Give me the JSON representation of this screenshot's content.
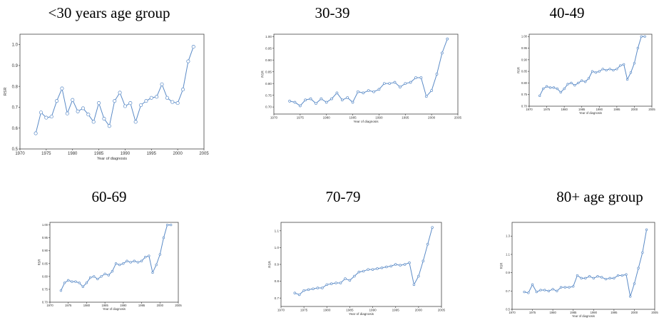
{
  "chart_data": [
    {
      "type": "line",
      "title": "<30 years age group",
      "xlabel": "Year of diagnosis",
      "ylabel": "RSR",
      "xlim": [
        1970,
        2005
      ],
      "ylim": [
        0.5,
        1.05
      ],
      "xticks": [
        "1970",
        "1975",
        "1980",
        "1985",
        "1990",
        "1995",
        "2000",
        "2005"
      ],
      "yticks": [
        "0.5",
        "0.6",
        "0.7",
        "0.8",
        "0.9",
        "1.0"
      ],
      "series": [
        {
          "x": [
            1973,
            1974,
            1975,
            1976,
            1977,
            1978,
            1979,
            1980,
            1981,
            1982,
            1983,
            1984,
            1985,
            1986,
            1987,
            1988,
            1989,
            1990,
            1991,
            1992,
            1993,
            1994,
            1995,
            1996,
            1997,
            1998,
            1999,
            2000,
            2001,
            2002,
            2003
          ],
          "values": [
            0.575,
            0.675,
            0.65,
            0.655,
            0.73,
            0.79,
            0.67,
            0.735,
            0.68,
            0.695,
            0.665,
            0.63,
            0.72,
            0.645,
            0.61,
            0.73,
            0.77,
            0.705,
            0.72,
            0.63,
            0.71,
            0.73,
            0.745,
            0.75,
            0.81,
            0.745,
            0.725,
            0.72,
            0.785,
            0.92,
            0.99
          ]
        }
      ]
    },
    {
      "type": "line",
      "title": "30-39",
      "xlabel": "Year of diagnosis",
      "ylabel": "RSR",
      "xlim": [
        1970,
        2005
      ],
      "ylim": [
        0.67,
        1.01
      ],
      "xticks": [
        "1970",
        "1975",
        "1980",
        "1985",
        "1990",
        "1995",
        "2000",
        "2005"
      ],
      "yticks": [
        "0.70",
        "0.75",
        "0.80",
        "0.85",
        "0.90",
        "0.95",
        "1.00"
      ],
      "series": [
        {
          "x": [
            1973,
            1974,
            1975,
            1976,
            1977,
            1978,
            1979,
            1980,
            1981,
            1982,
            1983,
            1984,
            1985,
            1986,
            1987,
            1988,
            1989,
            1990,
            1991,
            1992,
            1993,
            1994,
            1995,
            1996,
            1997,
            1998,
            1999,
            2000,
            2001,
            2002,
            2003
          ],
          "values": [
            0.725,
            0.72,
            0.705,
            0.73,
            0.735,
            0.715,
            0.735,
            0.72,
            0.735,
            0.76,
            0.73,
            0.74,
            0.72,
            0.765,
            0.76,
            0.77,
            0.765,
            0.775,
            0.8,
            0.8,
            0.805,
            0.785,
            0.8,
            0.805,
            0.825,
            0.825,
            0.745,
            0.77,
            0.84,
            0.93,
            0.99
          ]
        }
      ]
    },
    {
      "type": "line",
      "title": "40-49",
      "xlabel": "Year of diagnosis",
      "ylabel": "RSR",
      "xlim": [
        1970,
        2005
      ],
      "ylim": [
        0.7,
        1.01
      ],
      "xticks": [
        "1970",
        "1975",
        "1980",
        "1985",
        "1990",
        "1995",
        "2000",
        "2005"
      ],
      "yticks": [
        "0.70",
        "0.75",
        "0.80",
        "0.85",
        "0.90",
        "0.95",
        "1.00"
      ],
      "series": [
        {
          "x": [
            1973,
            1974,
            1975,
            1976,
            1977,
            1978,
            1979,
            1980,
            1981,
            1982,
            1983,
            1984,
            1985,
            1986,
            1987,
            1988,
            1989,
            1990,
            1991,
            1992,
            1993,
            1994,
            1995,
            1996,
            1997,
            1998,
            1999,
            2000,
            2001,
            2002,
            2003
          ],
          "values": [
            0.745,
            0.775,
            0.785,
            0.78,
            0.78,
            0.775,
            0.76,
            0.775,
            0.795,
            0.8,
            0.79,
            0.8,
            0.81,
            0.805,
            0.82,
            0.85,
            0.845,
            0.85,
            0.86,
            0.855,
            0.86,
            0.855,
            0.86,
            0.875,
            0.88,
            0.815,
            0.845,
            0.885,
            0.95,
            1.0,
            1.0
          ]
        }
      ]
    },
    {
      "type": "line",
      "title": "60-69",
      "xlabel": "Year of diagnosis",
      "ylabel": "RSR",
      "xlim": [
        1970,
        2005
      ],
      "ylim": [
        0.7,
        1.01
      ],
      "xticks": [
        "1970",
        "1975",
        "1980",
        "1985",
        "1990",
        "1995",
        "2000",
        "2005"
      ],
      "yticks": [
        "0.70",
        "0.75",
        "0.80",
        "0.85",
        "0.90",
        "0.95",
        "1.00"
      ],
      "series": [
        {
          "x": [
            1973,
            1974,
            1975,
            1976,
            1977,
            1978,
            1979,
            1980,
            1981,
            1982,
            1983,
            1984,
            1985,
            1986,
            1987,
            1988,
            1989,
            1990,
            1991,
            1992,
            1993,
            1994,
            1995,
            1996,
            1997,
            1998,
            1999,
            2000,
            2001,
            2002,
            2003
          ],
          "values": [
            0.745,
            0.775,
            0.785,
            0.78,
            0.78,
            0.775,
            0.76,
            0.775,
            0.795,
            0.8,
            0.79,
            0.8,
            0.81,
            0.805,
            0.82,
            0.85,
            0.845,
            0.85,
            0.86,
            0.855,
            0.86,
            0.855,
            0.86,
            0.875,
            0.88,
            0.815,
            0.845,
            0.885,
            0.95,
            1.0,
            1.0
          ]
        }
      ]
    },
    {
      "type": "line",
      "title": "70-79",
      "xlabel": "Year of diagnosis",
      "ylabel": "RSR",
      "xlim": [
        1970,
        2005
      ],
      "ylim": [
        0.65,
        1.15
      ],
      "xticks": [
        "1970",
        "1975",
        "1980",
        "1985",
        "1990",
        "1995",
        "2000",
        "2005"
      ],
      "yticks": [
        "0.7",
        "0.8",
        "0.9",
        "1.0",
        "1.1"
      ],
      "series": [
        {
          "x": [
            1973,
            1974,
            1975,
            1976,
            1977,
            1978,
            1979,
            1980,
            1981,
            1982,
            1983,
            1984,
            1985,
            1986,
            1987,
            1988,
            1989,
            1990,
            1991,
            1992,
            1993,
            1994,
            1995,
            1996,
            1997,
            1998,
            1999,
            2000,
            2001,
            2002,
            2003
          ],
          "values": [
            0.73,
            0.72,
            0.745,
            0.75,
            0.755,
            0.76,
            0.76,
            0.78,
            0.785,
            0.79,
            0.79,
            0.815,
            0.805,
            0.83,
            0.855,
            0.86,
            0.87,
            0.87,
            0.875,
            0.88,
            0.885,
            0.89,
            0.9,
            0.895,
            0.9,
            0.91,
            0.78,
            0.83,
            0.92,
            1.02,
            1.12
          ]
        }
      ]
    },
    {
      "type": "line",
      "title": "80+ age group",
      "xlabel": "Year of diagnosis",
      "ylabel": "RSR",
      "xlim": [
        1970,
        2005
      ],
      "ylim": [
        0.5,
        1.45
      ],
      "xticks": [
        "1970",
        "1975",
        "1980",
        "1985",
        "1990",
        "1995",
        "2000",
        "2005"
      ],
      "yticks": [
        "0.5",
        "0.7",
        "0.9",
        "1.1",
        "1.3"
      ],
      "series": [
        {
          "x": [
            1973,
            1974,
            1975,
            1976,
            1977,
            1978,
            1979,
            1980,
            1981,
            1982,
            1983,
            1984,
            1985,
            1986,
            1987,
            1988,
            1989,
            1990,
            1991,
            1992,
            1993,
            1994,
            1995,
            1996,
            1997,
            1998,
            1999,
            2000,
            2001,
            2002,
            2003
          ],
          "values": [
            0.69,
            0.68,
            0.77,
            0.69,
            0.71,
            0.71,
            0.7,
            0.72,
            0.7,
            0.74,
            0.74,
            0.74,
            0.75,
            0.87,
            0.84,
            0.84,
            0.86,
            0.84,
            0.86,
            0.85,
            0.83,
            0.84,
            0.84,
            0.87,
            0.87,
            0.88,
            0.64,
            0.78,
            0.95,
            1.12,
            1.37
          ]
        }
      ]
    }
  ]
}
